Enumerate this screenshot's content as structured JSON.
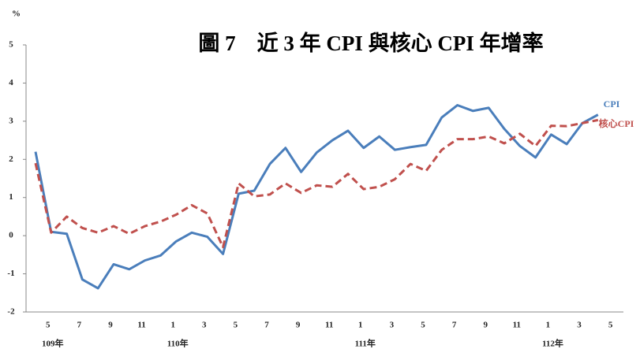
{
  "chart_data": {
    "type": "line",
    "title": "圖 7　近 3 年 CPI 與核心 CPI 年增率",
    "y_unit": "%",
    "categories": [
      null,
      "5",
      null,
      "7",
      null,
      "9",
      null,
      "11",
      null,
      "1",
      null,
      "3",
      null,
      "5",
      null,
      "7",
      null,
      "9",
      null,
      "11",
      null,
      "1",
      null,
      "3",
      null,
      "5",
      null,
      "7",
      null,
      "9",
      null,
      "11",
      null,
      "1",
      null,
      "3",
      null,
      "5"
    ],
    "category_groups": [
      null,
      "109年",
      null,
      null,
      null,
      null,
      null,
      null,
      null,
      "110年",
      null,
      null,
      null,
      null,
      null,
      null,
      null,
      null,
      null,
      null,
      null,
      "111年",
      null,
      null,
      null,
      null,
      null,
      null,
      null,
      null,
      null,
      null,
      null,
      "112年",
      null,
      null,
      null,
      null
    ],
    "series": [
      {
        "name": "CPI",
        "color": "#4a7ebb",
        "dashed": false,
        "values": [
          2.2,
          0.1,
          0.05,
          -1.15,
          -1.38,
          -0.75,
          -0.88,
          -0.65,
          -0.52,
          -0.15,
          0.08,
          -0.03,
          -0.48,
          1.1,
          1.18,
          1.88,
          2.3,
          1.67,
          2.18,
          2.5,
          2.75,
          2.3,
          2.6,
          2.25,
          2.32,
          2.38,
          3.1,
          3.42,
          3.27,
          3.35,
          2.8,
          2.35,
          2.05,
          2.65,
          2.4,
          2.95,
          3.17,
          null
        ]
      },
      {
        "name": "核心CPI",
        "color": "#c0504d",
        "dashed": true,
        "values": [
          1.9,
          0.08,
          0.5,
          0.2,
          0.08,
          0.25,
          0.05,
          0.25,
          0.37,
          0.55,
          0.8,
          0.58,
          -0.3,
          1.37,
          1.03,
          1.08,
          1.37,
          1.12,
          1.32,
          1.28,
          1.62,
          1.22,
          1.28,
          1.48,
          1.88,
          1.7,
          2.25,
          2.53,
          2.53,
          2.6,
          2.42,
          2.67,
          2.35,
          2.88,
          2.87,
          2.95,
          3.03,
          null
        ]
      }
    ],
    "ylim": [
      -2,
      5
    ],
    "yticks": [
      -2,
      -1,
      0,
      1,
      2,
      3,
      4,
      5
    ]
  }
}
